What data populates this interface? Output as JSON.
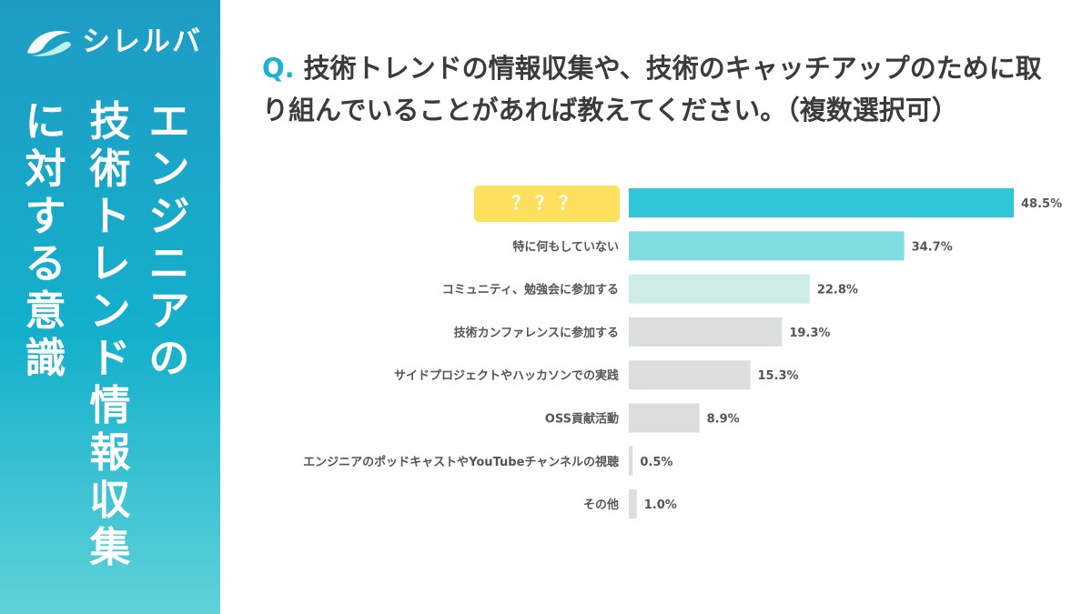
{
  "brand": {
    "name": "シレルバ",
    "logo_icon": "wave-icon"
  },
  "side_title_lines": [
    "エンジニアの",
    "技術トレンド情報収集",
    "に対する意識"
  ],
  "question": {
    "prefix": "Q.",
    "text": "技術トレンドの情報収集や、技術のキャッチアップのために取り組んでいることがあれば教えてください。（複数選択可）"
  },
  "colors": {
    "sidebar_top": "#1f9cc4",
    "sidebar_bottom": "#5fd2d8",
    "accent": "#1bb3cf",
    "highlight_label_bg": "#fde05e"
  },
  "chart_data": {
    "type": "bar",
    "orientation": "horizontal",
    "categories": [
      "？？？",
      "特に何もしていない",
      "コミュニティ、勉強会に参加する",
      "技術カンファレンスに参加する",
      "サイドプロジェクトやハッカソンでの実践",
      "OSS貢献活動",
      "エンジニアのポッドキャストやYouTubeチャンネルの視聴",
      "その他"
    ],
    "values": [
      48.5,
      34.7,
      22.8,
      19.3,
      15.3,
      8.9,
      0.5,
      1.0
    ],
    "value_labels": [
      "48.5%",
      "34.7%",
      "22.8%",
      "19.3%",
      "15.3%",
      "8.9%",
      "0.5%",
      "1.0%"
    ],
    "bar_colors": [
      "#2ec6d8",
      "#7fdde1",
      "#cdeee6",
      "#dadfdd",
      "#dadfdd",
      "#dadfdd",
      "#dadfdd",
      "#dadfdd"
    ],
    "highlight_index": 0,
    "xlim": [
      0,
      50
    ],
    "unit": "%",
    "grid": false,
    "legend": "none"
  }
}
